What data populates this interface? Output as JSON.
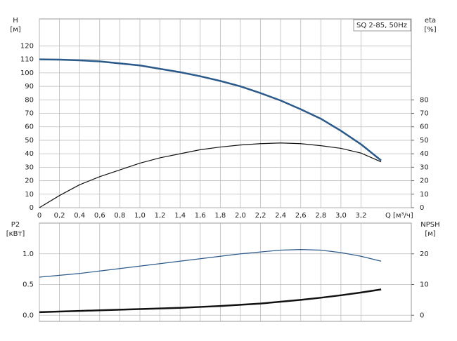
{
  "chart_data": [
    {
      "type": "line",
      "annotation": "SQ 2-85, 50Hz",
      "ylabel": "H",
      "yunit": "[м]",
      "y2label": "eta",
      "y2unit": "[%]",
      "xlabel": "Q [м³/ч]",
      "x": [
        0,
        0.2,
        0.4,
        0.6,
        0.8,
        1.0,
        1.2,
        1.4,
        1.6,
        1.8,
        2.0,
        2.2,
        2.4,
        2.6,
        2.8,
        3.0,
        3.2,
        3.4
      ],
      "xlim": [
        0,
        3.7
      ],
      "xticks": [
        0,
        {
          "value": 0.2,
          "label": "0,2"
        },
        {
          "value": 0.4,
          "label": "0,4"
        },
        {
          "value": 0.6,
          "label": "0,6"
        },
        {
          "value": 0.8,
          "label": "0,8"
        },
        {
          "value": 1.0,
          "label": "1,0"
        },
        {
          "value": 1.2,
          "label": "1,2"
        },
        {
          "value": 1.4,
          "label": "1,4"
        },
        {
          "value": 1.6,
          "label": "1,6"
        },
        {
          "value": 1.8,
          "label": "1,8"
        },
        {
          "value": 2.0,
          "label": "2,0"
        },
        {
          "value": 2.2,
          "label": "2,2"
        },
        {
          "value": 2.4,
          "label": "2,4"
        },
        {
          "value": 2.6,
          "label": "2,6"
        },
        {
          "value": 2.8,
          "label": "2,8"
        },
        {
          "value": 3.0,
          "label": "3,0"
        },
        {
          "value": 3.2,
          "label": "3,2"
        }
      ],
      "ylim": [
        0,
        140
      ],
      "yticks": [
        0,
        10,
        20,
        30,
        40,
        50,
        60,
        70,
        80,
        90,
        100,
        110,
        120
      ],
      "y2lim": [
        0,
        140
      ],
      "y2ticks": [
        0,
        10,
        20,
        30,
        40,
        50,
        60,
        70,
        80
      ],
      "grid": true,
      "series": [
        {
          "color": "#2b5a8a",
          "width": 2.5,
          "values": [
            110,
            109.8,
            109.3,
            108.5,
            107,
            105.5,
            103,
            100.5,
            97.5,
            94,
            90,
            85,
            79.5,
            73,
            66,
            57,
            47,
            35
          ]
        },
        {
          "color": "#111111",
          "width": 1.2,
          "axis": "y2",
          "values": [
            0,
            9,
            17,
            23,
            28,
            33,
            37,
            40,
            43,
            45,
            46.5,
            47.5,
            48,
            47.5,
            46,
            44,
            40.5,
            34
          ]
        }
      ]
    },
    {
      "type": "line",
      "ylabel": "P2",
      "yunit": "[кВт]",
      "y2label": "NPSH",
      "y2unit": "[м]",
      "x": [
        0,
        0.2,
        0.4,
        0.6,
        0.8,
        1.0,
        1.2,
        1.4,
        1.6,
        1.8,
        2.0,
        2.2,
        2.4,
        2.6,
        2.8,
        3.0,
        3.2,
        3.4
      ],
      "xlim": [
        0,
        3.7
      ],
      "ylim": [
        -0.1,
        1.5
      ],
      "yticks": [
        {
          "value": 0,
          "label": "0.0"
        },
        0.5,
        {
          "value": 1,
          "label": "1.0"
        }
      ],
      "y2lim": [
        -2,
        30
      ],
      "y2ticks": [
        0,
        10,
        20
      ],
      "grid": true,
      "series": [
        {
          "color": "#2b5a8a",
          "width": 1.2,
          "values": [
            0.62,
            0.65,
            0.68,
            0.72,
            0.76,
            0.8,
            0.84,
            0.88,
            0.92,
            0.96,
            1.0,
            1.03,
            1.06,
            1.07,
            1.06,
            1.02,
            0.96,
            0.88
          ]
        },
        {
          "color": "#111111",
          "width": 2.5,
          "axis": "y2",
          "values": [
            1.0,
            1.2,
            1.4,
            1.6,
            1.8,
            2.0,
            2.2,
            2.4,
            2.7,
            3.0,
            3.4,
            3.8,
            4.4,
            5.0,
            5.7,
            6.5,
            7.4,
            8.4
          ]
        }
      ]
    }
  ]
}
